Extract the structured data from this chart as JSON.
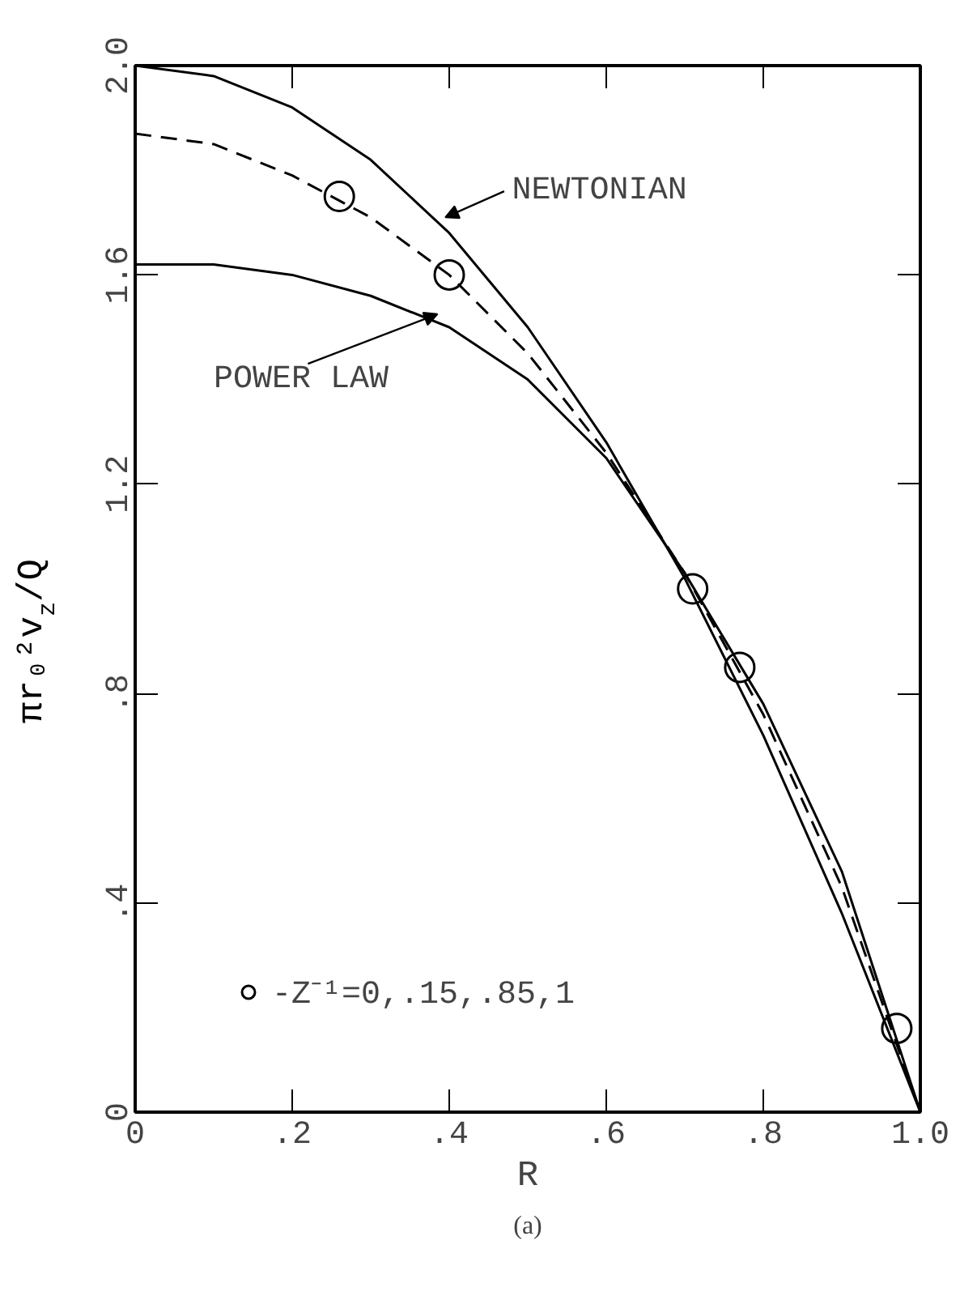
{
  "chart_data": {
    "type": "line",
    "xlabel": "R",
    "ylabel": "πr₀²v$_{z}$/Q",
    "xlim": [
      0,
      1.0
    ],
    "ylim": [
      0,
      2.0
    ],
    "xticks": [
      {
        "value": 0,
        "label": "0"
      },
      {
        "value": 0.2,
        "label": ".2"
      },
      {
        "value": 0.4,
        "label": ".4"
      },
      {
        "value": 0.6,
        "label": ".6"
      },
      {
        "value": 0.8,
        "label": ".8"
      },
      {
        "value": 1.0,
        "label": "1.0"
      }
    ],
    "yticks": [
      {
        "value": 0,
        "label": "0"
      },
      {
        "value": 0.4,
        "label": ".4"
      },
      {
        "value": 0.8,
        "label": ".8"
      },
      {
        "value": 1.2,
        "label": "1.2"
      },
      {
        "value": 1.6,
        "label": "1.6"
      },
      {
        "value": 2.0,
        "label": "2.0"
      }
    ],
    "grid": false,
    "legend": "bottom left",
    "marker": "none",
    "series": [
      {
        "color": "#000000",
        "line_style": "solid",
        "x": [
          0,
          0.1,
          0.2,
          0.3,
          0.4,
          0.5,
          0.6,
          0.7,
          0.8,
          0.9,
          1.0
        ],
        "values": [
          2.0,
          1.98,
          1.92,
          1.82,
          1.68,
          1.5,
          1.28,
          1.02,
          0.72,
          0.38,
          0
        ]
      },
      {
        "color": "#000000",
        "line_style": "dashed",
        "x": [
          0,
          0.1,
          0.2,
          0.3,
          0.4,
          0.5,
          0.6,
          0.7,
          0.8,
          0.9,
          1.0
        ],
        "values": [
          1.87,
          1.85,
          1.79,
          1.71,
          1.6,
          1.45,
          1.26,
          1.03,
          0.76,
          0.43,
          0
        ]
      },
      {
        "color": "#000000",
        "line_style": "solid",
        "x": [
          0,
          0.1,
          0.2,
          0.3,
          0.4,
          0.5,
          0.6,
          0.7,
          0.8,
          0.9,
          1.0
        ],
        "values": [
          1.62,
          1.62,
          1.6,
          1.56,
          1.5,
          1.4,
          1.25,
          1.03,
          0.78,
          0.46,
          0
        ]
      },
      {
        "type": "scatter",
        "marker": "circle",
        "name": "-Z⁻¹=0,.15,.85,1",
        "color": "#000000",
        "x": [
          0.26,
          0.4,
          0.71,
          0.77,
          0.97
        ],
        "values": [
          1.75,
          1.6,
          1.0,
          0.85,
          0.16
        ]
      }
    ],
    "annotations": [
      "NEWTONIAN",
      "POWER LAW",
      "(a)"
    ]
  }
}
